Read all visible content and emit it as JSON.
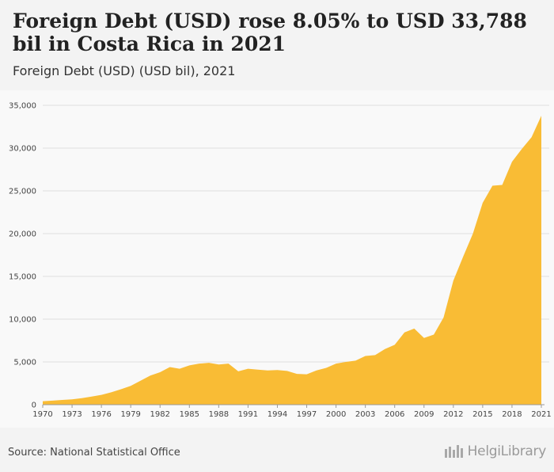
{
  "header": {
    "title": "Foreign Debt (USD) rose 8.05% to USD 33,788 bil in Costa Rica in 2021",
    "subtitle": "Foreign Debt (USD) (USD bil), 2021"
  },
  "footer": {
    "source": "Source: National Statistical Office",
    "logo_text": "HelgiLibrary"
  },
  "colors": {
    "area_fill": "#f9bc35",
    "grid": "#e0e0e0",
    "background": "#f9f9f9"
  },
  "chart_data": {
    "type": "area",
    "title": "Foreign Debt (USD) rose 8.05% to USD 33,788 bil in Costa Rica in 2021",
    "subtitle": "Foreign Debt (USD) (USD bil), 2021",
    "xlabel": "",
    "ylabel": "",
    "ylim": [
      0,
      35000
    ],
    "yticks": [
      0,
      5000,
      10000,
      15000,
      20000,
      25000,
      30000,
      35000
    ],
    "ytick_labels": [
      "0",
      "5,000",
      "10,000",
      "15,000",
      "20,000",
      "25,000",
      "30,000",
      "35,000"
    ],
    "xticks": [
      1970,
      1973,
      1976,
      1979,
      1982,
      1985,
      1988,
      1991,
      1994,
      1997,
      2000,
      2003,
      2006,
      2009,
      2012,
      2015,
      2018,
      2021
    ],
    "grid": true,
    "x": [
      1970,
      1971,
      1972,
      1973,
      1974,
      1975,
      1976,
      1977,
      1978,
      1979,
      1980,
      1981,
      1982,
      1983,
      1984,
      1985,
      1986,
      1987,
      1988,
      1989,
      1990,
      1991,
      1992,
      1993,
      1994,
      1995,
      1996,
      1997,
      1998,
      1999,
      2000,
      2001,
      2002,
      2003,
      2004,
      2005,
      2006,
      2007,
      2008,
      2009,
      2010,
      2011,
      2012,
      2013,
      2014,
      2015,
      2016,
      2017,
      2018,
      2019,
      2020,
      2021
    ],
    "series": [
      {
        "values": [
          400,
          480,
          560,
          620,
          760,
          950,
          1150,
          1450,
          1800,
          2200,
          2800,
          3400,
          3800,
          4400,
          4200,
          4600,
          4800,
          4900,
          4700,
          4800,
          3900,
          4200,
          4100,
          4000,
          4050,
          3950,
          3600,
          3550,
          4000,
          4300,
          4800,
          5000,
          5150,
          5700,
          5800,
          6500,
          7000,
          8450,
          8900,
          7800,
          8200,
          10200,
          14500,
          17300,
          20000,
          23600,
          25600,
          25700,
          28400,
          29900,
          31270,
          33788
        ]
      }
    ]
  }
}
